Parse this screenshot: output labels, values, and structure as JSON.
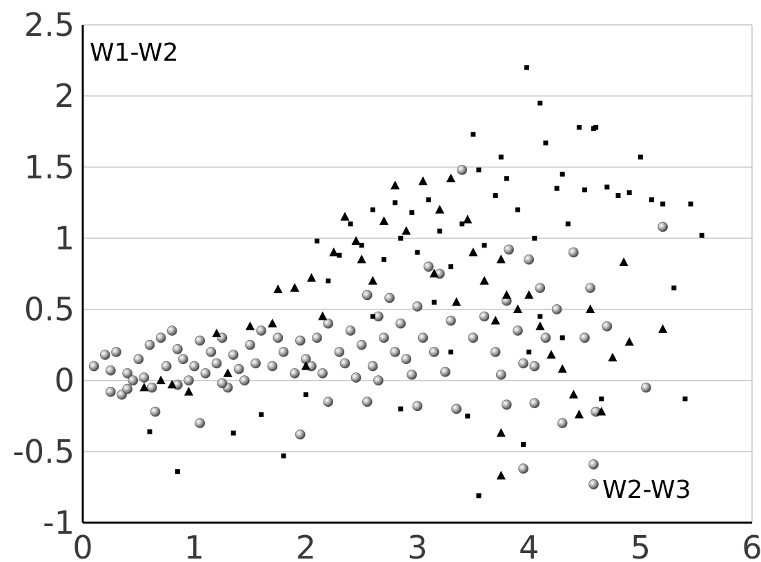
{
  "chart_data": {
    "type": "scatter",
    "title": "",
    "xlabel": "",
    "ylabel": "",
    "xlim": [
      0,
      6
    ],
    "ylim": [
      -1,
      2.5
    ],
    "grid": "horizontal",
    "xticks": [
      "0",
      "1",
      "2",
      "3",
      "4",
      "5",
      "6"
    ],
    "yticks": [
      "2.5",
      "2",
      "1.5",
      "1",
      "0.5",
      "0",
      "-0.5",
      "-1"
    ],
    "annotations": [
      {
        "text": "W1-W2",
        "position": "top-left"
      },
      {
        "text": "W2-W3",
        "position": "bottom-right"
      }
    ],
    "series": [
      {
        "marker": "sphere",
        "color": "#9a9a9a",
        "points": [
          [
            0.1,
            0.1
          ],
          [
            0.2,
            0.18
          ],
          [
            0.25,
            0.07
          ],
          [
            0.3,
            0.2
          ],
          [
            0.25,
            -0.08
          ],
          [
            0.35,
            -0.1
          ],
          [
            0.4,
            0.05
          ],
          [
            0.45,
            0.0
          ],
          [
            0.5,
            0.15
          ],
          [
            0.55,
            0.02
          ],
          [
            0.6,
            0.25
          ],
          [
            0.62,
            -0.05
          ],
          [
            0.7,
            0.3
          ],
          [
            0.75,
            0.1
          ],
          [
            0.8,
            0.35
          ],
          [
            0.85,
            0.22
          ],
          [
            0.9,
            0.15
          ],
          [
            0.95,
            0.0
          ],
          [
            1.0,
            0.1
          ],
          [
            1.05,
            0.28
          ],
          [
            1.1,
            0.05
          ],
          [
            1.15,
            0.2
          ],
          [
            1.2,
            0.12
          ],
          [
            1.25,
            0.3
          ],
          [
            1.3,
            -0.05
          ],
          [
            1.35,
            0.18
          ],
          [
            1.4,
            0.08
          ],
          [
            1.5,
            0.25
          ],
          [
            1.55,
            0.12
          ],
          [
            1.6,
            0.35
          ],
          [
            1.7,
            0.1
          ],
          [
            1.75,
            0.3
          ],
          [
            1.8,
            0.2
          ],
          [
            1.9,
            0.05
          ],
          [
            1.95,
            0.28
          ],
          [
            2.0,
            0.15
          ],
          [
            2.05,
            0.1
          ],
          [
            2.1,
            0.3
          ],
          [
            2.15,
            0.05
          ],
          [
            2.2,
            0.4
          ],
          [
            2.3,
            0.2
          ],
          [
            2.35,
            0.12
          ],
          [
            2.4,
            0.35
          ],
          [
            2.5,
            0.25
          ],
          [
            2.55,
            0.6
          ],
          [
            2.6,
            0.1
          ],
          [
            2.65,
            0.45
          ],
          [
            2.7,
            0.3
          ],
          [
            2.75,
            0.58
          ],
          [
            2.8,
            0.2
          ],
          [
            2.85,
            0.4
          ],
          [
            2.9,
            0.15
          ],
          [
            3.0,
            0.52
          ],
          [
            3.05,
            0.3
          ],
          [
            3.1,
            0.8
          ],
          [
            3.15,
            0.2
          ],
          [
            3.2,
            0.75
          ],
          [
            3.3,
            0.42
          ],
          [
            3.35,
            -0.2
          ],
          [
            3.4,
            1.48
          ],
          [
            3.5,
            0.3
          ],
          [
            3.6,
            0.45
          ],
          [
            3.7,
            0.2
          ],
          [
            3.8,
            0.56
          ],
          [
            3.82,
            0.92
          ],
          [
            3.9,
            0.35
          ],
          [
            3.95,
            0.12
          ],
          [
            4.0,
            0.85
          ],
          [
            4.05,
            0.1
          ],
          [
            4.1,
            0.65
          ],
          [
            4.15,
            0.3
          ],
          [
            4.25,
            0.5
          ],
          [
            4.3,
            -0.3
          ],
          [
            4.4,
            0.9
          ],
          [
            4.5,
            0.3
          ],
          [
            4.55,
            0.65
          ],
          [
            4.6,
            -0.22
          ],
          [
            4.7,
            0.38
          ],
          [
            4.58,
            -0.59
          ],
          [
            4.58,
            -0.73
          ],
          [
            5.05,
            -0.05
          ],
          [
            5.2,
            1.08
          ],
          [
            1.95,
            -0.38
          ],
          [
            1.05,
            -0.3
          ],
          [
            0.65,
            -0.22
          ],
          [
            2.2,
            -0.15
          ],
          [
            2.55,
            -0.15
          ],
          [
            3.0,
            -0.18
          ],
          [
            3.8,
            -0.17
          ],
          [
            4.05,
            -0.16
          ],
          [
            3.95,
            -0.62
          ],
          [
            0.85,
            -0.03
          ],
          [
            1.45,
            0.0
          ],
          [
            2.45,
            0.02
          ],
          [
            2.95,
            0.04
          ],
          [
            0.4,
            -0.06
          ],
          [
            1.25,
            -0.02
          ],
          [
            2.65,
            0.0
          ],
          [
            3.25,
            0.06
          ],
          [
            3.75,
            0.04
          ]
        ]
      },
      {
        "marker": "triangle",
        "color": "#000000",
        "points": [
          [
            0.55,
            -0.05
          ],
          [
            0.8,
            -0.03
          ],
          [
            0.95,
            -0.08
          ],
          [
            1.2,
            0.33
          ],
          [
            1.5,
            0.38
          ],
          [
            1.7,
            0.4
          ],
          [
            1.75,
            0.64
          ],
          [
            1.9,
            0.65
          ],
          [
            2.05,
            0.72
          ],
          [
            2.15,
            0.45
          ],
          [
            2.25,
            0.9
          ],
          [
            2.35,
            1.15
          ],
          [
            2.45,
            0.98
          ],
          [
            2.5,
            0.85
          ],
          [
            2.6,
            0.7
          ],
          [
            2.7,
            1.12
          ],
          [
            2.8,
            1.37
          ],
          [
            2.9,
            1.05
          ],
          [
            3.05,
            1.4
          ],
          [
            3.15,
            0.75
          ],
          [
            3.2,
            1.2
          ],
          [
            3.3,
            1.42
          ],
          [
            3.35,
            0.55
          ],
          [
            3.45,
            1.13
          ],
          [
            3.5,
            0.9
          ],
          [
            3.6,
            0.7
          ],
          [
            3.7,
            0.42
          ],
          [
            3.75,
            0.85
          ],
          [
            3.8,
            0.6
          ],
          [
            3.9,
            0.5
          ],
          [
            4.0,
            0.6
          ],
          [
            4.1,
            0.38
          ],
          [
            4.2,
            0.18
          ],
          [
            4.3,
            0.08
          ],
          [
            4.4,
            -0.1
          ],
          [
            4.45,
            -0.24
          ],
          [
            4.55,
            0.5
          ],
          [
            4.65,
            -0.22
          ],
          [
            4.75,
            0.16
          ],
          [
            4.85,
            0.83
          ],
          [
            4.9,
            0.27
          ],
          [
            5.2,
            0.36
          ],
          [
            3.75,
            -0.37
          ],
          [
            3.75,
            -0.67
          ],
          [
            2.0,
            0.1
          ],
          [
            1.3,
            0.05
          ],
          [
            0.7,
            0.0
          ]
        ]
      },
      {
        "marker": "square",
        "color": "#000000",
        "points": [
          [
            0.6,
            -0.36
          ],
          [
            0.85,
            -0.64
          ],
          [
            1.35,
            -0.37
          ],
          [
            1.6,
            -0.24
          ],
          [
            1.8,
            -0.53
          ],
          [
            2.1,
            0.98
          ],
          [
            2.2,
            0.7
          ],
          [
            2.3,
            0.88
          ],
          [
            2.4,
            1.1
          ],
          [
            2.5,
            0.95
          ],
          [
            2.6,
            1.2
          ],
          [
            2.7,
            0.85
          ],
          [
            2.8,
            1.25
          ],
          [
            2.85,
            1.0
          ],
          [
            2.95,
            1.18
          ],
          [
            3.0,
            0.9
          ],
          [
            3.1,
            1.27
          ],
          [
            3.2,
            1.05
          ],
          [
            3.3,
            0.8
          ],
          [
            3.4,
            1.1
          ],
          [
            3.5,
            1.73
          ],
          [
            3.55,
            1.48
          ],
          [
            3.6,
            0.95
          ],
          [
            3.7,
            1.3
          ],
          [
            3.75,
            1.57
          ],
          [
            3.8,
            1.42
          ],
          [
            3.9,
            1.2
          ],
          [
            3.98,
            2.2
          ],
          [
            4.05,
            1.0
          ],
          [
            4.1,
            1.95
          ],
          [
            4.15,
            1.67
          ],
          [
            4.25,
            1.35
          ],
          [
            4.3,
            1.45
          ],
          [
            4.35,
            1.1
          ],
          [
            4.45,
            1.78
          ],
          [
            4.5,
            1.34
          ],
          [
            4.58,
            1.77
          ],
          [
            4.6,
            1.78
          ],
          [
            4.7,
            1.36
          ],
          [
            4.8,
            1.3
          ],
          [
            4.9,
            1.32
          ],
          [
            5.0,
            1.57
          ],
          [
            5.1,
            1.27
          ],
          [
            5.2,
            1.24
          ],
          [
            5.3,
            0.65
          ],
          [
            5.45,
            1.24
          ],
          [
            5.55,
            1.02
          ],
          [
            5.4,
            -0.13
          ],
          [
            4.65,
            -0.13
          ],
          [
            3.95,
            -0.45
          ],
          [
            3.55,
            -0.81
          ],
          [
            3.45,
            -0.25
          ],
          [
            2.85,
            -0.2
          ],
          [
            2.0,
            -0.1
          ],
          [
            4.0,
            0.2
          ],
          [
            4.3,
            0.3
          ],
          [
            3.3,
            0.2
          ],
          [
            2.6,
            0.45
          ],
          [
            3.15,
            0.55
          ],
          [
            4.1,
            0.45
          ]
        ]
      }
    ]
  }
}
